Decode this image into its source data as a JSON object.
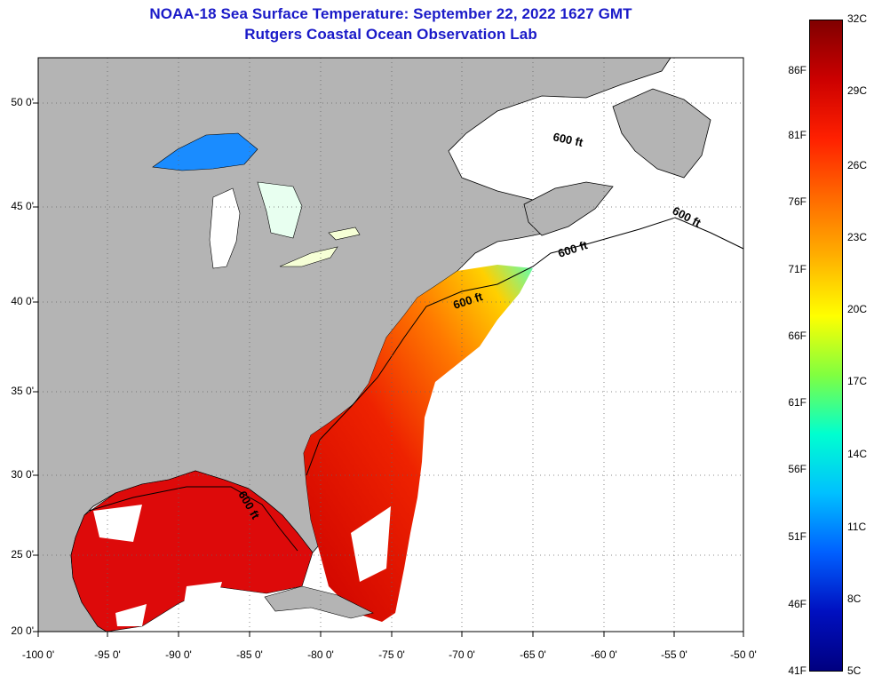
{
  "title_line1": "NOAA-18 Sea Surface Temperature:  September 22, 2022 1627 GMT",
  "title_line2": "Rutgers Coastal Ocean Observation Lab",
  "lat_labels": [
    "50 0'",
    "45 0'",
    "40 0'",
    "35 0'",
    "30 0'",
    "25 0'",
    "20 0'"
  ],
  "lon_labels": [
    "-100 0'",
    "-95 0'",
    "-90 0'",
    "-85 0'",
    "-80 0'",
    "-75 0'",
    "-70 0'",
    "-65 0'",
    "-60 0'",
    "-55 0'",
    "-50 0'"
  ],
  "isobath_label": "600 ft",
  "colorbar": {
    "fahrenheit": [
      "86F",
      "81F",
      "76F",
      "71F",
      "66F",
      "61F",
      "56F",
      "51F",
      "46F",
      "41F"
    ],
    "celsius": [
      "32C",
      "29C",
      "26C",
      "23C",
      "20C",
      "17C",
      "14C",
      "11C",
      "8C",
      "5C"
    ],
    "colors": [
      "#800000",
      "#cc0000",
      "#ff2000",
      "#ff6a00",
      "#ffb000",
      "#ffff00",
      "#80ff40",
      "#00ffd0",
      "#00c0ff",
      "#0060ff",
      "#0010c0",
      "#000080"
    ]
  },
  "colors": {
    "land": "#b4b4b4",
    "no_data": "#ffffff",
    "frame": "#000000"
  }
}
